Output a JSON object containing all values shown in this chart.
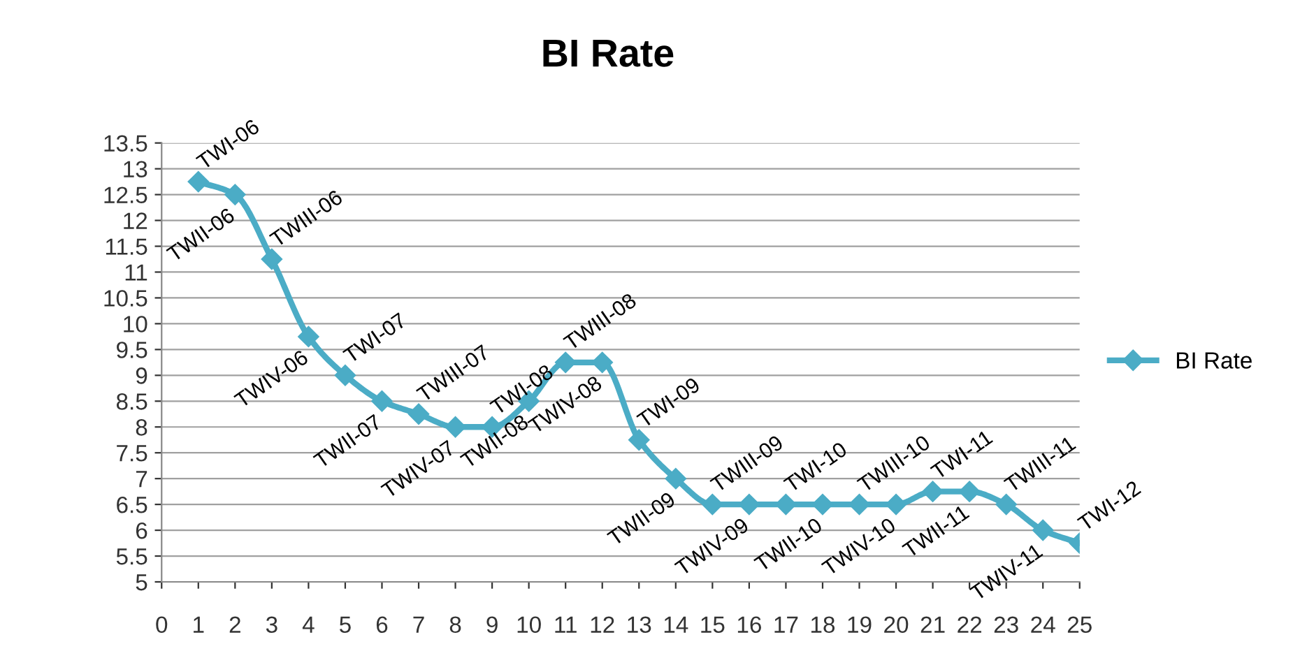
{
  "chart_data": {
    "type": "line",
    "title": "BI Rate",
    "x": [
      1,
      2,
      3,
      4,
      5,
      6,
      7,
      8,
      9,
      10,
      11,
      12,
      13,
      14,
      15,
      16,
      17,
      18,
      19,
      20,
      21,
      22,
      23,
      24,
      25
    ],
    "series": [
      {
        "name": "BI Rate",
        "color": "#4bacc6",
        "values": [
          12.75,
          12.5,
          11.25,
          9.75,
          9.0,
          8.5,
          8.25,
          8.0,
          8.0,
          8.5,
          9.25,
          9.25,
          7.75,
          7.0,
          6.5,
          6.5,
          6.5,
          6.5,
          6.5,
          6.5,
          6.75,
          6.75,
          6.5,
          6.0,
          5.75
        ]
      }
    ],
    "xlim": [
      0,
      25
    ],
    "xticks": [
      0,
      1,
      2,
      3,
      4,
      5,
      6,
      7,
      8,
      9,
      10,
      11,
      12,
      13,
      14,
      15,
      16,
      17,
      18,
      19,
      20,
      21,
      22,
      23,
      24,
      25
    ],
    "ylim": [
      5,
      13.5
    ],
    "yticks": [
      5,
      5.5,
      6,
      6.5,
      7,
      7.5,
      8,
      8.5,
      9,
      9.5,
      10,
      10.5,
      11,
      11.5,
      12,
      12.5,
      13,
      13.5
    ],
    "grid": "y",
    "legend": "right",
    "marker": "diamond",
    "line_style": "solid",
    "annotations": [
      {
        "text": "TWI-06",
        "x": 1,
        "y": 12.75
      },
      {
        "text": "TWII-06",
        "x": 2,
        "y": 12.5
      },
      {
        "text": "TWIII-06",
        "x": 3,
        "y": 11.25
      },
      {
        "text": "TWIV-06",
        "x": 4,
        "y": 9.75
      },
      {
        "text": "TWI-07",
        "x": 5,
        "y": 9.0
      },
      {
        "text": "TWII-07",
        "x": 6,
        "y": 8.5
      },
      {
        "text": "TWIII-07",
        "x": 7,
        "y": 8.25
      },
      {
        "text": "TWIV-07",
        "x": 8,
        "y": 8.0
      },
      {
        "text": "TWI-08",
        "x": 9,
        "y": 8.0
      },
      {
        "text": "TWII-08",
        "x": 10,
        "y": 8.5
      },
      {
        "text": "TWIII-08",
        "x": 11,
        "y": 9.25
      },
      {
        "text": "TWIV-08",
        "x": 12,
        "y": 9.25
      },
      {
        "text": "TWI-09",
        "x": 13,
        "y": 7.75
      },
      {
        "text": "TWII-09",
        "x": 14,
        "y": 7.0
      },
      {
        "text": "TWIII-09",
        "x": 15,
        "y": 6.5
      },
      {
        "text": "TWIV-09",
        "x": 16,
        "y": 6.5
      },
      {
        "text": "TWI-10",
        "x": 17,
        "y": 6.5
      },
      {
        "text": "TWII-10",
        "x": 18,
        "y": 6.5
      },
      {
        "text": "TWIII-10",
        "x": 19,
        "y": 6.5
      },
      {
        "text": "TWIV-10",
        "x": 20,
        "y": 6.5
      },
      {
        "text": "TWI-11",
        "x": 21,
        "y": 6.75
      },
      {
        "text": "TWII-11",
        "x": 22,
        "y": 6.75
      },
      {
        "text": "TWIII-11",
        "x": 23,
        "y": 6.5
      },
      {
        "text": "TWIV-11",
        "x": 24,
        "y": 6.0
      },
      {
        "text": "TWI-12",
        "x": 25,
        "y": 5.75
      }
    ]
  }
}
